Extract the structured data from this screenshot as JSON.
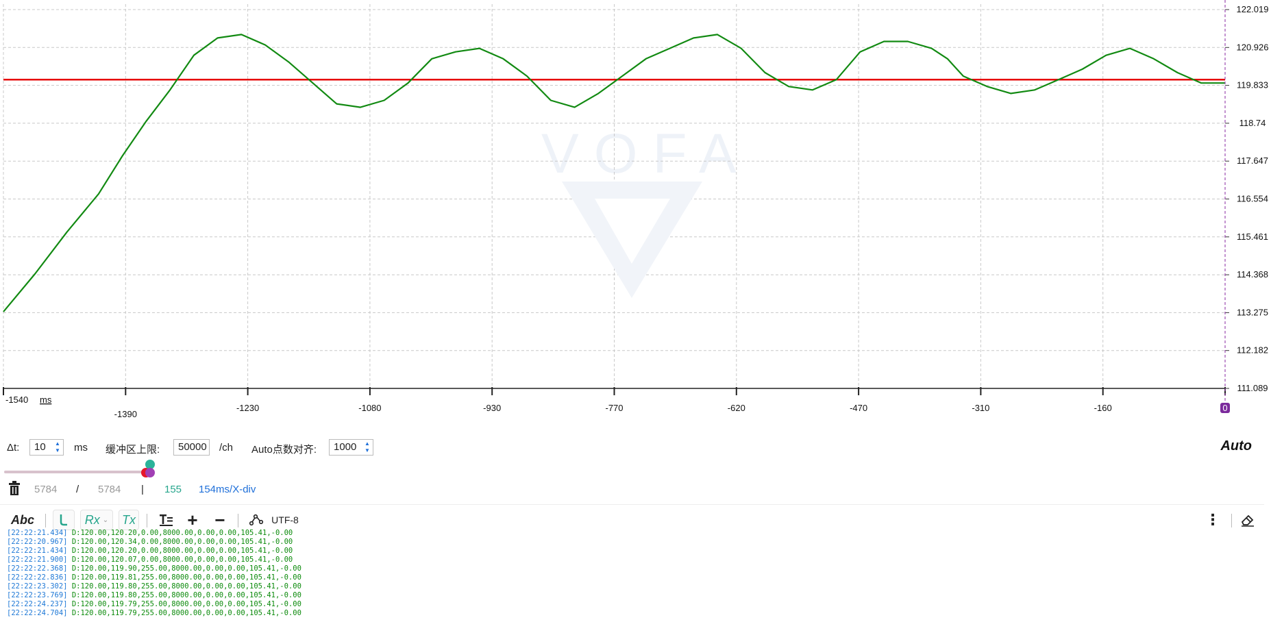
{
  "chart_data": {
    "type": "line",
    "watermark": "VOFA",
    "x_ticks": [
      "-1540",
      "-1390",
      "-1230",
      "-1080",
      "-930",
      "-770",
      "-620",
      "-470",
      "-310",
      "-160",
      "0"
    ],
    "x_unit": "ms",
    "y_ticks": [
      "122.019",
      "120.926",
      "119.833",
      "118.74",
      "117.647",
      "116.554",
      "115.461",
      "114.368",
      "113.275",
      "112.182",
      "111.089"
    ],
    "ylim": [
      111.089,
      122.019
    ],
    "xlim": [
      -1540,
      0
    ],
    "grid": true,
    "series": [
      {
        "color": "#e60000",
        "x": [
          -1540,
          0
        ],
        "y": [
          120.0,
          120.0
        ]
      },
      {
        "color": "#128a12",
        "x": [
          -1540,
          -1500,
          -1460,
          -1420,
          -1390,
          -1360,
          -1330,
          -1300,
          -1270,
          -1240,
          -1210,
          -1180,
          -1150,
          -1120,
          -1090,
          -1060,
          -1030,
          -1000,
          -970,
          -940,
          -910,
          -880,
          -850,
          -820,
          -790,
          -760,
          -730,
          -700,
          -670,
          -640,
          -610,
          -580,
          -550,
          -520,
          -490,
          -460,
          -430,
          -400,
          -370,
          -350,
          -330,
          -300,
          -270,
          -240,
          -210,
          -180,
          -150,
          -120,
          -90,
          -60,
          -30,
          -10,
          0
        ],
        "y": [
          113.3,
          114.4,
          115.6,
          116.7,
          117.8,
          118.8,
          119.7,
          120.7,
          121.2,
          121.3,
          121.0,
          120.5,
          119.9,
          119.3,
          119.2,
          119.4,
          119.9,
          120.6,
          120.8,
          120.9,
          120.6,
          120.1,
          119.4,
          119.2,
          119.6,
          120.1,
          120.6,
          120.9,
          121.2,
          121.3,
          120.9,
          120.2,
          119.8,
          119.7,
          120.0,
          120.8,
          121.1,
          121.1,
          120.9,
          120.6,
          120.1,
          119.8,
          119.6,
          119.7,
          120.0,
          120.3,
          120.7,
          120.9,
          120.6,
          120.2,
          119.9,
          119.9,
          119.9
        ]
      }
    ],
    "cursor_value": "0"
  },
  "controls": {
    "dt_label": "Δt:",
    "dt_value": "10",
    "dt_unit": "ms",
    "buffer_label": "缓冲区上限:",
    "buffer_value": "50000",
    "buffer_unit": "/ch",
    "auto_align_label": "Auto点数对齐:",
    "auto_align_value": "1000",
    "mode": "Auto"
  },
  "stats": {
    "count_a": "5784",
    "slash": "/",
    "count_b": "5784",
    "bar": "|",
    "points": "155",
    "scale": "154ms/X-div"
  },
  "toolbar": {
    "abc_label": "Abc",
    "rx_label": "Rx",
    "tx_label": "Tx",
    "encoding": "UTF-8"
  },
  "log": [
    {
      "ts": "[22:22:21.434]",
      "msg": "D:120.00,120.20,0.00,8000.00,0.00,0.00,105.41,-0.00"
    },
    {
      "ts": "[22:22:20.967]",
      "msg": "D:120.00,120.34,0.00,8000.00,0.00,0.00,105.41,-0.00"
    },
    {
      "ts": "[22:22:21.434]",
      "msg": "D:120.00,120.20,0.00,8000.00,0.00,0.00,105.41,-0.00"
    },
    {
      "ts": "[22:22:21.900]",
      "msg": "D:120.00,120.07,0.00,8000.00,0.00,0.00,105.41,-0.00"
    },
    {
      "ts": "[22:22:22.368]",
      "msg": "D:120.00,119.90,255.00,8000.00,0.00,0.00,105.41,-0.00"
    },
    {
      "ts": "[22:22:22.836]",
      "msg": "D:120.00,119.81,255.00,8000.00,0.00,0.00,105.41,-0.00"
    },
    {
      "ts": "[22:22:23.302]",
      "msg": "D:120.00,119.80,255.00,8000.00,0.00,0.00,105.41,-0.00"
    },
    {
      "ts": "[22:22:23.769]",
      "msg": "D:120.00,119.80,255.00,8000.00,0.00,0.00,105.41,-0.00"
    },
    {
      "ts": "[22:22:24.237]",
      "msg": "D:120.00,119.79,255.00,8000.00,0.00,0.00,105.41,-0.00"
    },
    {
      "ts": "[22:22:24.704]",
      "msg": "D:120.00,119.79,255.00,8000.00,0.00,0.00,105.41,-0.00"
    }
  ]
}
